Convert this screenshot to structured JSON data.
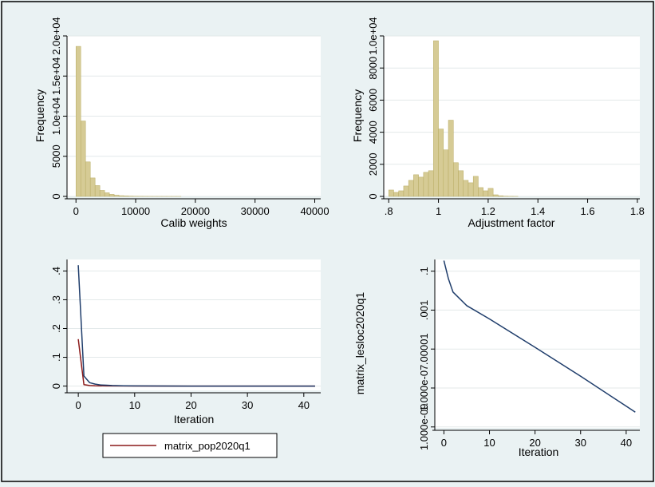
{
  "colors": {
    "background": "#eaf2f3",
    "plot_bg": "#ffffff",
    "bar_fill": "#d6cb95",
    "bar_stroke": "#b8ab62",
    "line_navy": "#1f3d6b",
    "line_maroon": "#8b1a1a",
    "grid": "#e3e9ea",
    "axis": "#000000"
  },
  "chart_data": [
    {
      "id": "calib",
      "type": "bar",
      "title": "",
      "xlabel": "Calib weights",
      "ylabel": "Frequency",
      "xlim": [
        -1500,
        41000
      ],
      "ylim": [
        0,
        20000
      ],
      "xticks": [
        0,
        10000,
        20000,
        30000,
        40000
      ],
      "xtick_labels": [
        "0",
        "10000",
        "20000",
        "30000",
        "40000"
      ],
      "yticks": [
        0,
        5000,
        10000,
        15000,
        20000
      ],
      "ytick_labels": [
        "0",
        "5000",
        "1.0e+04",
        "1.5e+04",
        "2.0e+04"
      ],
      "bin_start": 0,
      "bin_width": 800,
      "values": [
        18700,
        9400,
        4300,
        2300,
        1350,
        750,
        450,
        260,
        150,
        90,
        55,
        35,
        22,
        14,
        9,
        6,
        4,
        3,
        2,
        1,
        1,
        1
      ]
    },
    {
      "id": "adjust",
      "type": "bar",
      "title": "",
      "xlabel": "Adjustment factor",
      "ylabel": "Frequency",
      "xlim": [
        0.78,
        1.81
      ],
      "ylim": [
        0,
        10000
      ],
      "xticks": [
        0.8,
        1,
        1.2,
        1.4,
        1.6,
        1.8
      ],
      "xtick_labels": [
        ".8",
        "1",
        "1.2",
        "1.4",
        "1.6",
        "1.8"
      ],
      "yticks": [
        0,
        2000,
        4000,
        6000,
        8000,
        10000
      ],
      "ytick_labels": [
        "0",
        "2000",
        "4000",
        "6000",
        "8000",
        "1.0e+04"
      ],
      "bin_start": 0.8,
      "bin_width": 0.02,
      "values": [
        400,
        250,
        350,
        650,
        1000,
        1350,
        1200,
        1500,
        1600,
        9700,
        4200,
        2900,
        4750,
        2100,
        1600,
        1000,
        850,
        1250,
        550,
        350,
        500,
        100,
        40,
        15,
        8,
        4
      ]
    },
    {
      "id": "iter_linear",
      "type": "line",
      "title": "",
      "xlabel": "Iteration",
      "ylabel": "",
      "xlim": [
        -2,
        43
      ],
      "ylim": [
        -0.015,
        0.44
      ],
      "xticks": [
        0,
        10,
        20,
        30,
        40
      ],
      "xtick_labels": [
        "0",
        "10",
        "20",
        "30",
        "40"
      ],
      "yticks": [
        0,
        0.1,
        0.2,
        0.3,
        0.4
      ],
      "ytick_labels": [
        "0",
        ".1",
        ".2",
        ".3",
        ".4"
      ],
      "legend": {
        "position": "bottom",
        "entries": [
          "matrix_pop2020q1"
        ]
      },
      "series": [
        {
          "name": "",
          "color_key": "line_navy",
          "x": [
            0,
            1,
            2,
            3,
            4,
            5,
            6,
            8,
            10,
            15,
            20,
            30,
            42
          ],
          "y": [
            0.42,
            0.035,
            0.012,
            0.007,
            0.004,
            0.003,
            0.002,
            0.001,
            0.0005,
            0.0002,
            0.0001,
            5e-05,
            1e-05
          ]
        },
        {
          "name": "matrix_pop2020q1",
          "color_key": "line_maroon",
          "x": [
            0,
            1,
            2,
            3,
            5,
            10,
            20,
            42
          ],
          "y": [
            0.163,
            0.005,
            0.002,
            0.001,
            0.0005,
            0.0002,
            0.0001,
            5e-05
          ]
        }
      ]
    },
    {
      "id": "iter_log",
      "type": "line",
      "title": "",
      "xlabel": "Iteration",
      "ylabel": "matrix_lesloc2020q1",
      "log_y": true,
      "xlim": [
        -2,
        43
      ],
      "ylim_exp": [
        -9.05,
        -0.4
      ],
      "xticks": [
        0,
        10,
        20,
        30,
        40
      ],
      "xtick_labels": [
        "0",
        "10",
        "20",
        "30",
        "40"
      ],
      "yticks_exp": [
        -1,
        -3,
        -5,
        -7,
        -9
      ],
      "ytick_labels": [
        ".1",
        ".001",
        ".00001",
        "1.000e-07",
        "1.000e-09"
      ],
      "series": [
        {
          "name": "",
          "color_key": "line_navy",
          "x": [
            0,
            1,
            2,
            5,
            10,
            20,
            30,
            42
          ],
          "y": [
            0.35,
            0.04,
            0.0085,
            0.0017,
            0.00035,
            1.23e-05,
            4e-07,
            5.8e-09
          ]
        }
      ]
    }
  ]
}
